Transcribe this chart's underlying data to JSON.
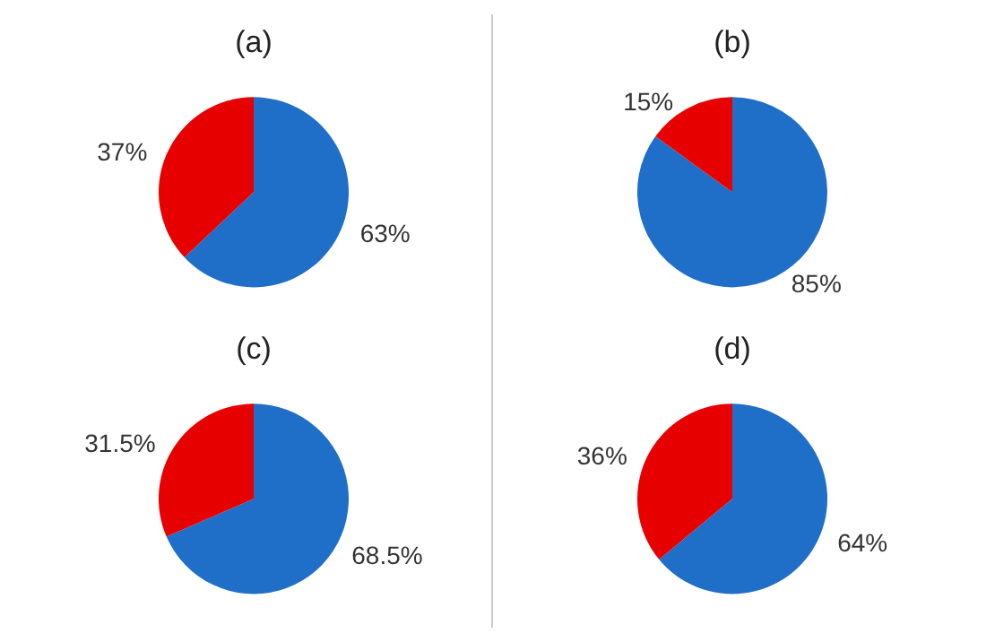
{
  "chart_data": [
    {
      "type": "pie",
      "title": "(a)",
      "categories": [
        null,
        null
      ],
      "values": [
        63,
        37
      ],
      "colors": [
        "#1f6fc8",
        "#e60000"
      ],
      "value_labels": [
        "63%",
        "37%"
      ]
    },
    {
      "type": "pie",
      "title": "(b)",
      "categories": [
        null,
        null
      ],
      "values": [
        85,
        15
      ],
      "colors": [
        "#1f6fc8",
        "#e60000"
      ],
      "value_labels": [
        "85%",
        "15%"
      ]
    },
    {
      "type": "pie",
      "title": "(c)",
      "categories": [
        null,
        null
      ],
      "values": [
        68.5,
        31.5
      ],
      "colors": [
        "#1f6fc8",
        "#e60000"
      ],
      "value_labels": [
        "68.5%",
        "31.5%"
      ]
    },
    {
      "type": "pie",
      "title": "(d)",
      "categories": [
        null,
        null
      ],
      "values": [
        64,
        36
      ],
      "colors": [
        "#1f6fc8",
        "#e60000"
      ],
      "value_labels": [
        "64%",
        "36%"
      ]
    }
  ]
}
